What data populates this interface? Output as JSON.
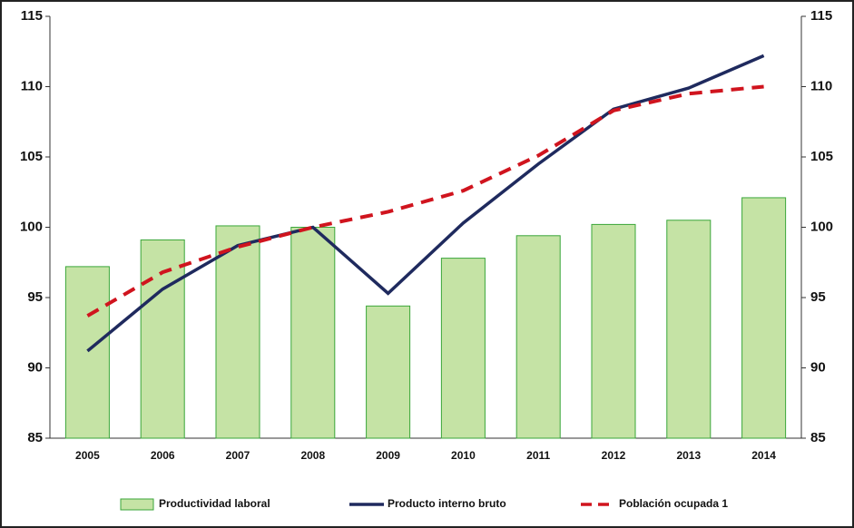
{
  "chart_data": {
    "type": "bar",
    "categories": [
      "2005",
      "2006",
      "2007",
      "2008",
      "2009",
      "2010",
      "2011",
      "2012",
      "2013",
      "2014"
    ],
    "series": [
      {
        "name": "Productividad laboral",
        "type": "bar",
        "color": "#c5e3a5",
        "values": [
          97.2,
          99.1,
          100.1,
          100.0,
          94.4,
          97.8,
          99.4,
          100.2,
          100.5,
          102.1
        ]
      },
      {
        "name": "Producto interno bruto",
        "type": "line",
        "color": "#1f2a5e",
        "values": [
          91.2,
          95.6,
          98.7,
          100.0,
          95.3,
          100.3,
          104.5,
          108.4,
          109.9,
          112.2
        ]
      },
      {
        "name": "Población ocupada 1",
        "type": "line",
        "style": "dashed",
        "color": "#d0141e",
        "values": [
          93.7,
          96.8,
          98.6,
          100.0,
          101.1,
          102.6,
          105.1,
          108.3,
          109.5,
          110.0
        ]
      }
    ],
    "ylim": [
      85,
      115
    ],
    "yticks": [
      85,
      90,
      95,
      100,
      105,
      110,
      115
    ],
    "y2lim": [
      85,
      115
    ],
    "y2ticks": [
      85,
      90,
      95,
      100,
      105,
      110,
      115
    ],
    "legend": "bottom"
  }
}
